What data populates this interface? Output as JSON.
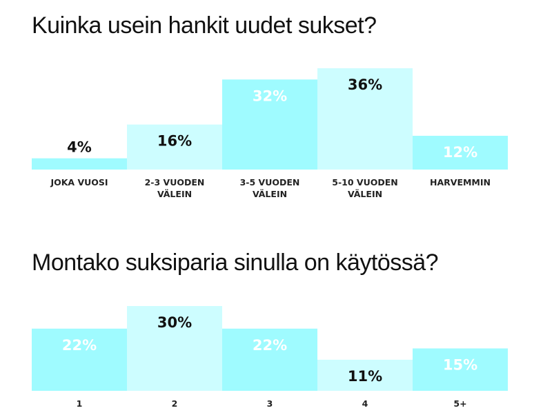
{
  "chart_data": [
    {
      "type": "bar",
      "title": "Kuinka usein hankit uudet sukset?",
      "categories": [
        [
          "JOKA VUOSI"
        ],
        [
          "2-3 VUODEN",
          "VÄLEIN"
        ],
        [
          "3-5 VUODEN",
          "VÄLEIN"
        ],
        [
          "5-10 VUODEN",
          "VÄLEIN"
        ],
        [
          "HARVEMMIN"
        ]
      ],
      "values": [
        4,
        16,
        32,
        36,
        12
      ],
      "value_labels": [
        "4%",
        "16%",
        "32%",
        "36%",
        "12%"
      ],
      "unit": "%",
      "ylim": [
        0,
        36
      ],
      "grid": false,
      "legend": "none",
      "colors": [
        "#9ffbff",
        "#cdfdff",
        "#9ffbff",
        "#cdfdff",
        "#9ffbff"
      ],
      "label_colors": [
        "#111111",
        "#111111",
        "#ffffff",
        "#111111",
        "#ffffff"
      ]
    },
    {
      "type": "bar",
      "title": "Montako suksiparia sinulla on käytössä?",
      "categories": [
        [
          "1"
        ],
        [
          "2"
        ],
        [
          "3"
        ],
        [
          "4"
        ],
        [
          "5+"
        ]
      ],
      "values": [
        22,
        30,
        22,
        11,
        15
      ],
      "value_labels": [
        "22%",
        "30%",
        "22%",
        "11%",
        "15%"
      ],
      "unit": "%",
      "ylim": [
        0,
        30
      ],
      "grid": false,
      "legend": "none",
      "colors": [
        "#9ffbff",
        "#cdfdff",
        "#9ffbff",
        "#cdfdff",
        "#9ffbff"
      ],
      "label_colors": [
        "#ffffff",
        "#111111",
        "#ffffff",
        "#111111",
        "#ffffff"
      ]
    }
  ]
}
